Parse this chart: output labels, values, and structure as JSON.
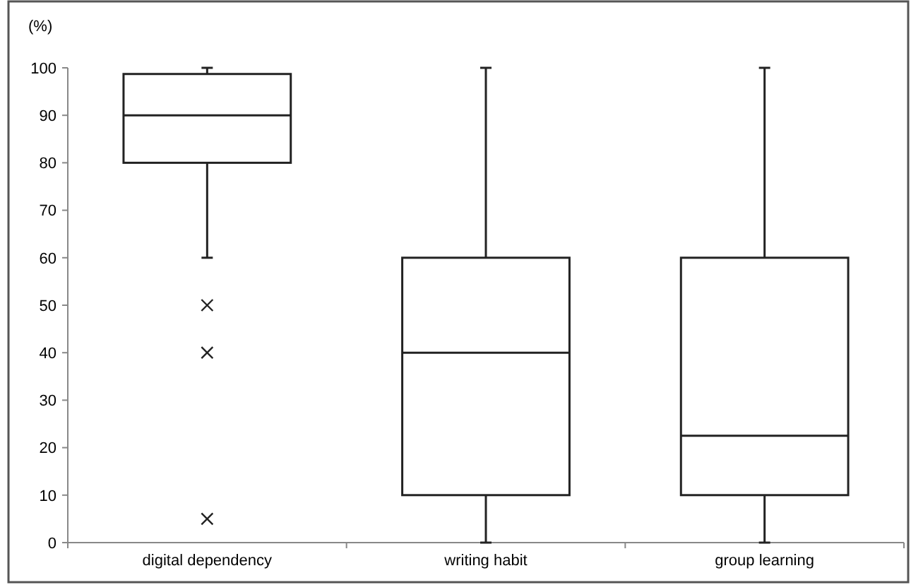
{
  "chart_data": {
    "type": "box",
    "ylabel": "(%)",
    "categories": [
      "digital dependency",
      "writing habit",
      "group learning"
    ],
    "boxes": [
      {
        "low": 60,
        "q1": 80,
        "median": 90,
        "q3": 98.7,
        "high": 100,
        "outliers": [
          50,
          40,
          5
        ]
      },
      {
        "low": 0,
        "q1": 10,
        "median": 40,
        "q3": 60,
        "high": 100
      },
      {
        "low": 0,
        "q1": 10,
        "median": 22.5,
        "q3": 60,
        "high": 100
      }
    ],
    "ylim": [
      0,
      100
    ],
    "yticks": [
      0,
      10,
      20,
      30,
      40,
      50,
      60,
      70,
      80,
      90,
      100
    ],
    "grid": false
  }
}
